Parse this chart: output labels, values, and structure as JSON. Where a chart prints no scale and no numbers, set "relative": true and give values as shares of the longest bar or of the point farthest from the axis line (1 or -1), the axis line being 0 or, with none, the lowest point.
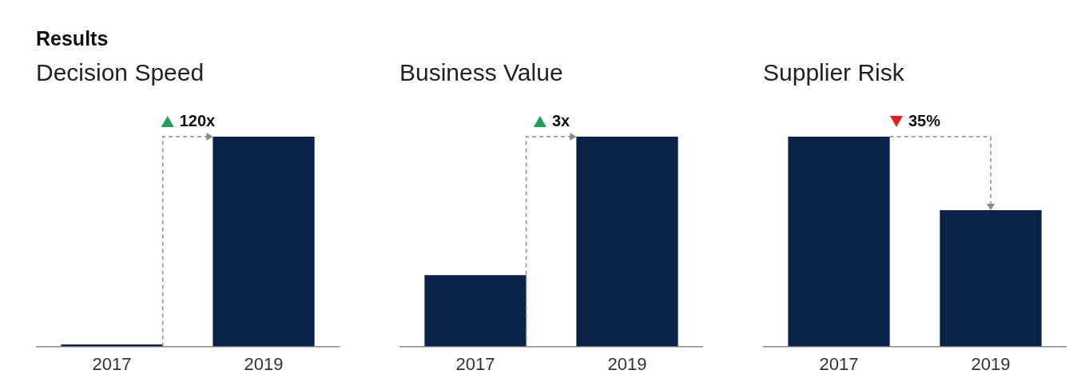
{
  "chart_data": [
    {
      "type": "bar",
      "title": "Results",
      "subtitle": "Decision Speed",
      "categories": [
        "2017",
        "2019"
      ],
      "values": [
        0.01,
        1
      ],
      "color": "#0b2349",
      "relative": true,
      "annotations": [
        "120x"
      ],
      "grid": false,
      "legend": false
    },
    {
      "type": "bar",
      "subtitle": "Business Value",
      "categories": [
        "2017",
        "2019"
      ],
      "values": [
        0.34,
        1
      ],
      "color": "#0b2349",
      "relative": true,
      "annotations": [
        "3x"
      ],
      "grid": false,
      "legend": false
    },
    {
      "type": "bar",
      "subtitle": "Supplier Risk",
      "categories": [
        "2017",
        "2019"
      ],
      "values": [
        1,
        0.65
      ],
      "color": "#0b2349",
      "relative": true,
      "annotations": [
        "35%"
      ],
      "grid": false,
      "legend": false
    }
  ]
}
